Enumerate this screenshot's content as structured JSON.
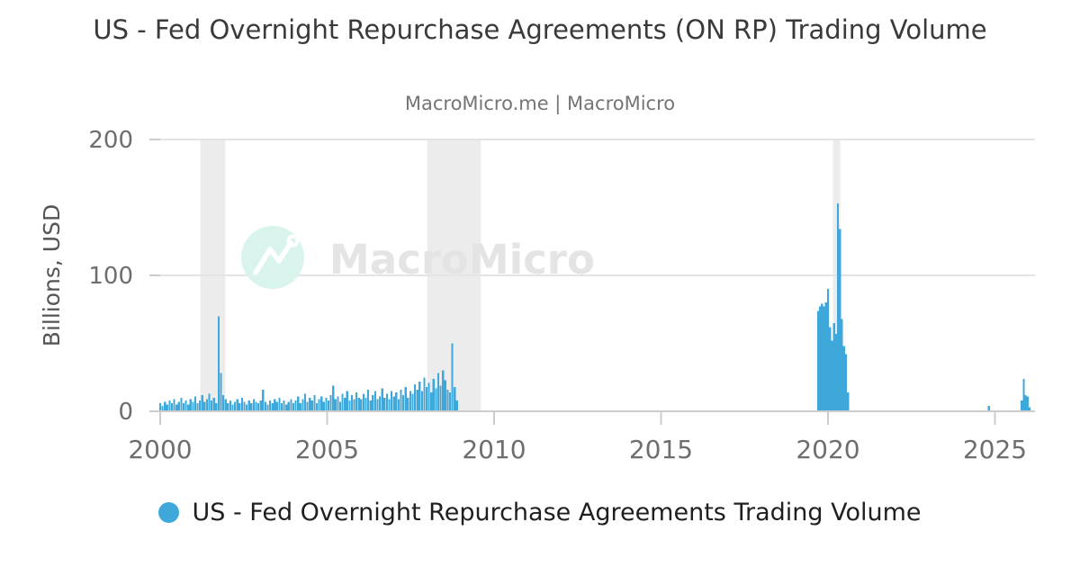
{
  "header": {
    "title": "US - Fed Overnight Repurchase Agreements (ON RP) Trading Volume",
    "subtitle": "MacroMicro.me | MacroMicro"
  },
  "watermark": {
    "icon": "macromicro-mountain-logo",
    "text": "MacroMicro"
  },
  "legend": {
    "marker_color": "#3fa8da",
    "label": "US - Fed Overnight Repurchase Agreements Trading Volume"
  },
  "colors": {
    "bar": "#3fa8da",
    "gridline": "#e4e4e4",
    "axis": "#cccccc",
    "tick_label": "#6e6e6e",
    "recession_band": "#ececec",
    "title": "#3a3a3a",
    "subtitle": "#757575",
    "watermark_circle": "#d9f4ed",
    "watermark_text": "#e4e4e4"
  },
  "chart_data": {
    "type": "bar",
    "title": "US - Fed Overnight Repurchase Agreements (ON RP) Trading Volume",
    "subtitle": "MacroMicro.me | MacroMicro",
    "xlabel": "",
    "ylabel": "Billions, USD",
    "xlim": [
      2000,
      2026.2
    ],
    "ylim": [
      0,
      200
    ],
    "x_ticks": [
      2000,
      2005,
      2010,
      2015,
      2020,
      2025
    ],
    "y_ticks": [
      0,
      100,
      200
    ],
    "grid": "horizontal",
    "legend_position": "bottom",
    "bar_color": "#3fa8da",
    "recession_bands": [
      [
        2001.2,
        2001.95
      ],
      [
        2008.0,
        2009.6
      ],
      [
        2020.15,
        2020.37
      ]
    ],
    "series": [
      {
        "name": "US - Fed Overnight Repurchase Agreements Trading Volume",
        "points": [
          [
            2000.0,
            6
          ],
          [
            2000.07,
            4
          ],
          [
            2000.14,
            7
          ],
          [
            2000.21,
            5
          ],
          [
            2000.28,
            8
          ],
          [
            2000.35,
            6
          ],
          [
            2000.42,
            9
          ],
          [
            2000.49,
            5
          ],
          [
            2000.56,
            7
          ],
          [
            2000.63,
            10
          ],
          [
            2000.7,
            6
          ],
          [
            2000.77,
            8
          ],
          [
            2000.84,
            5
          ],
          [
            2000.91,
            9
          ],
          [
            2000.98,
            7
          ],
          [
            2001.05,
            11
          ],
          [
            2001.12,
            6
          ],
          [
            2001.19,
            8
          ],
          [
            2001.26,
            12
          ],
          [
            2001.33,
            7
          ],
          [
            2001.4,
            9
          ],
          [
            2001.47,
            13
          ],
          [
            2001.54,
            8
          ],
          [
            2001.61,
            10
          ],
          [
            2001.68,
            6
          ],
          [
            2001.75,
            70
          ],
          [
            2001.82,
            28
          ],
          [
            2001.89,
            12
          ],
          [
            2001.96,
            9
          ],
          [
            2002.03,
            6
          ],
          [
            2002.1,
            8
          ],
          [
            2002.17,
            5
          ],
          [
            2002.24,
            7
          ],
          [
            2002.31,
            9
          ],
          [
            2002.38,
            6
          ],
          [
            2002.45,
            10
          ],
          [
            2002.52,
            7
          ],
          [
            2002.59,
            5
          ],
          [
            2002.66,
            8
          ],
          [
            2002.73,
            6
          ],
          [
            2002.8,
            9
          ],
          [
            2002.87,
            7
          ],
          [
            2002.94,
            6
          ],
          [
            2003.01,
            8
          ],
          [
            2003.08,
            16
          ],
          [
            2003.15,
            7
          ],
          [
            2003.22,
            5
          ],
          [
            2003.29,
            8
          ],
          [
            2003.36,
            6
          ],
          [
            2003.43,
            9
          ],
          [
            2003.5,
            7
          ],
          [
            2003.57,
            10
          ],
          [
            2003.64,
            6
          ],
          [
            2003.71,
            8
          ],
          [
            2003.78,
            5
          ],
          [
            2003.85,
            7
          ],
          [
            2003.92,
            9
          ],
          [
            2003.99,
            6
          ],
          [
            2004.06,
            8
          ],
          [
            2004.13,
            11
          ],
          [
            2004.2,
            6
          ],
          [
            2004.27,
            9
          ],
          [
            2004.34,
            13
          ],
          [
            2004.41,
            7
          ],
          [
            2004.48,
            10
          ],
          [
            2004.55,
            8
          ],
          [
            2004.62,
            12
          ],
          [
            2004.69,
            6
          ],
          [
            2004.76,
            9
          ],
          [
            2004.83,
            11
          ],
          [
            2004.9,
            7
          ],
          [
            2004.97,
            10
          ],
          [
            2005.04,
            8
          ],
          [
            2005.11,
            12
          ],
          [
            2005.18,
            19
          ],
          [
            2005.25,
            9
          ],
          [
            2005.32,
            11
          ],
          [
            2005.39,
            7
          ],
          [
            2005.46,
            13
          ],
          [
            2005.53,
            10
          ],
          [
            2005.6,
            15
          ],
          [
            2005.67,
            8
          ],
          [
            2005.74,
            12
          ],
          [
            2005.81,
            9
          ],
          [
            2005.88,
            14
          ],
          [
            2005.95,
            10
          ],
          [
            2006.02,
            9
          ],
          [
            2006.09,
            13
          ],
          [
            2006.16,
            10
          ],
          [
            2006.23,
            16
          ],
          [
            2006.3,
            8
          ],
          [
            2006.37,
            12
          ],
          [
            2006.44,
            15
          ],
          [
            2006.51,
            9
          ],
          [
            2006.58,
            11
          ],
          [
            2006.65,
            17
          ],
          [
            2006.72,
            10
          ],
          [
            2006.79,
            13
          ],
          [
            2006.86,
            9
          ],
          [
            2006.93,
            15
          ],
          [
            2007.0,
            11
          ],
          [
            2007.07,
            14
          ],
          [
            2007.14,
            9
          ],
          [
            2007.21,
            16
          ],
          [
            2007.28,
            12
          ],
          [
            2007.35,
            18
          ],
          [
            2007.42,
            10
          ],
          [
            2007.49,
            15
          ],
          [
            2007.56,
            13
          ],
          [
            2007.63,
            20
          ],
          [
            2007.7,
            16
          ],
          [
            2007.77,
            22
          ],
          [
            2007.84,
            15
          ],
          [
            2007.91,
            25
          ],
          [
            2007.98,
            18
          ],
          [
            2008.05,
            21
          ],
          [
            2008.12,
            14
          ],
          [
            2008.19,
            24
          ],
          [
            2008.26,
            17
          ],
          [
            2008.33,
            28
          ],
          [
            2008.4,
            19
          ],
          [
            2008.47,
            30
          ],
          [
            2008.54,
            23
          ],
          [
            2008.61,
            16
          ],
          [
            2008.68,
            14
          ],
          [
            2008.75,
            50
          ],
          [
            2008.82,
            18
          ],
          [
            2008.89,
            8
          ],
          [
            2019.7,
            74
          ],
          [
            2019.76,
            77
          ],
          [
            2019.82,
            79
          ],
          [
            2019.88,
            77
          ],
          [
            2019.94,
            80
          ],
          [
            2020.0,
            90
          ],
          [
            2020.06,
            62
          ],
          [
            2020.12,
            52
          ],
          [
            2020.18,
            65
          ],
          [
            2020.24,
            57
          ],
          [
            2020.3,
            153
          ],
          [
            2020.36,
            134
          ],
          [
            2020.42,
            68
          ],
          [
            2020.48,
            48
          ],
          [
            2020.54,
            42
          ],
          [
            2020.6,
            14
          ],
          [
            2024.82,
            4
          ],
          [
            2025.8,
            8
          ],
          [
            2025.86,
            24
          ],
          [
            2025.92,
            12
          ],
          [
            2025.98,
            11
          ],
          [
            2026.04,
            3
          ]
        ]
      }
    ]
  }
}
